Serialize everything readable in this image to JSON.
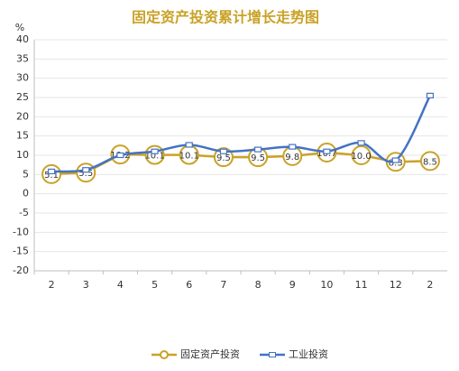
{
  "chart_data": {
    "type": "line",
    "title": "固定资产投资累计增长走势图",
    "y_label": "%",
    "categories": [
      "2",
      "3",
      "4",
      "5",
      "6",
      "7",
      "8",
      "9",
      "10",
      "11",
      "12",
      "2"
    ],
    "series": [
      {
        "name": "固定资产投资",
        "color": "#c9a227",
        "marker": "circle",
        "smooth": false,
        "values": [
          5.1,
          5.5,
          10.2,
          10.1,
          10.1,
          9.5,
          9.5,
          9.8,
          10.7,
          10.0,
          8.3,
          8.5
        ],
        "value_labels": [
          "5.1",
          "5.5",
          "10.2",
          "10.1",
          "10.1",
          "9.5",
          "9.5",
          "9.8",
          "10.7",
          "10.0",
          "8.3",
          "8.5"
        ]
      },
      {
        "name": "工业投资",
        "color": "#4472c4",
        "marker": "square",
        "smooth": true,
        "values": [
          5.8,
          6.2,
          10.0,
          11.0,
          12.7,
          11.0,
          11.5,
          12.2,
          11.0,
          13.2,
          8.7,
          25.5
        ]
      }
    ],
    "ylim": [
      -20,
      40
    ],
    "yticks": [
      -20,
      -15,
      -10,
      -5,
      0,
      5,
      10,
      15,
      20,
      25,
      30,
      35,
      40
    ],
    "grid": true,
    "legend": "bottom"
  }
}
